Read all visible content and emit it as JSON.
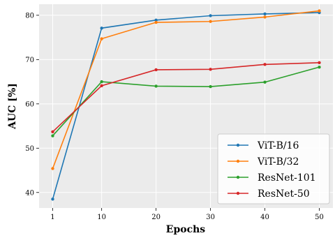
{
  "chart_data": {
    "type": "line",
    "x": [
      1,
      10,
      20,
      30,
      40,
      50
    ],
    "xticks": [
      "1",
      "10",
      "20",
      "30",
      "40",
      "50"
    ],
    "yticks": [
      40,
      50,
      60,
      70,
      80
    ],
    "xlim": [
      -1.5,
      52.5
    ],
    "ylim": [
      36.5,
      82.5
    ],
    "xlabel": "Epochs",
    "ylabel": "AUC [%]",
    "grid": true,
    "legend_position": "bottom-right",
    "background": "#ebebeb",
    "series": [
      {
        "name": "ViT-B/16",
        "color": "#1f77b4",
        "values": [
          38.5,
          77.1,
          78.9,
          79.9,
          80.3,
          80.6
        ]
      },
      {
        "name": "ViT-B/32",
        "color": "#ff7f0e",
        "values": [
          45.4,
          74.7,
          78.4,
          78.6,
          79.6,
          81.0
        ]
      },
      {
        "name": "ResNet-101",
        "color": "#2ca02c",
        "values": [
          52.8,
          65.0,
          64.0,
          63.9,
          64.9,
          68.3
        ]
      },
      {
        "name": "ResNet-50",
        "color": "#d62728",
        "values": [
          53.7,
          64.1,
          67.7,
          67.8,
          68.9,
          69.3
        ]
      }
    ]
  }
}
